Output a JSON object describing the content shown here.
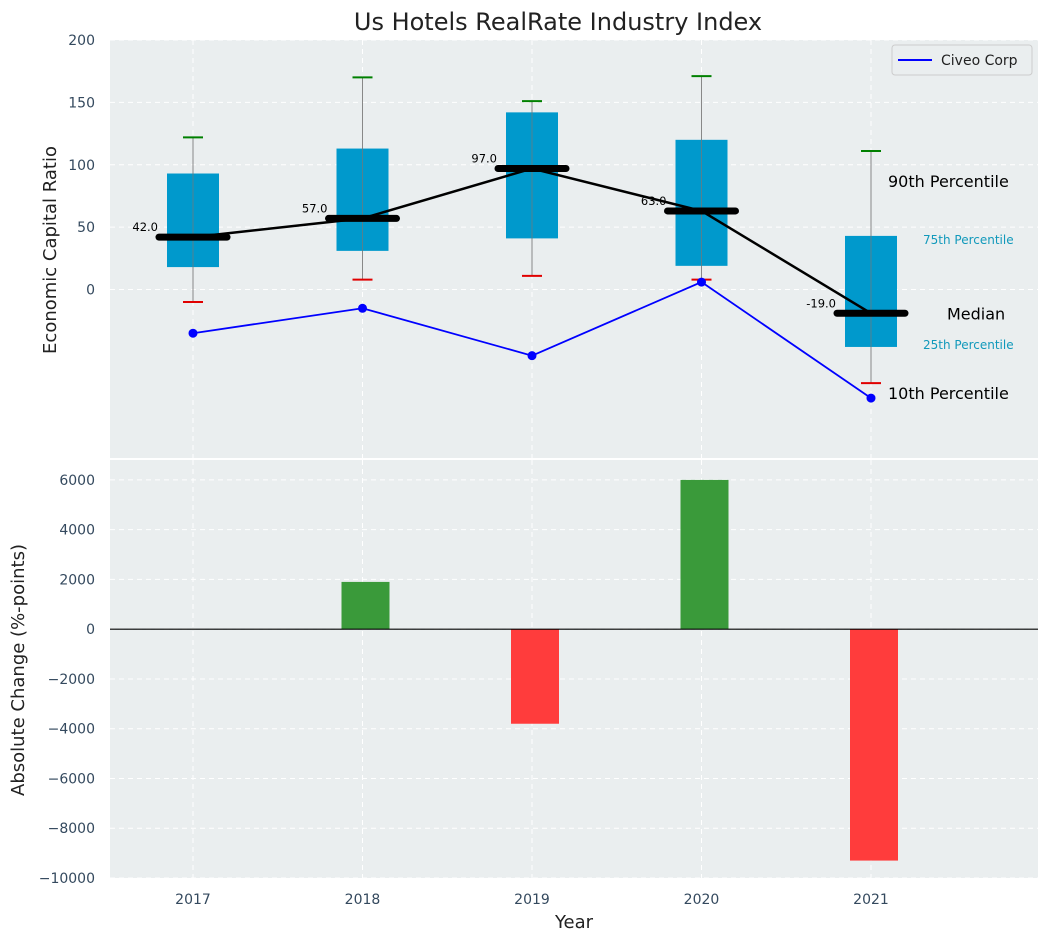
{
  "title": "Us Hotels RealRate Industry Index",
  "colors": {
    "panel_bg": "#eaeeef",
    "box": "#0099cc",
    "median": "#000000",
    "company": "#0000ff",
    "whisker_high": "#008000",
    "whisker_low": "#e00000",
    "bar_pos": "#3a9a3a",
    "bar_neg": "#ff3c3c",
    "label_25_75": "#1199bb",
    "tick_text": "#34495e"
  },
  "chart_data": [
    {
      "type": "box",
      "ylabel": "Economic Capital Ratio",
      "ylim": [
        -135,
        200
      ],
      "yticks": [
        0,
        50,
        100,
        150,
        200
      ],
      "categories": [
        "2017",
        "2018",
        "2019",
        "2020",
        "2021"
      ],
      "p10": [
        -10,
        8,
        11,
        8,
        -75
      ],
      "p25": [
        18,
        31,
        41,
        19,
        -46
      ],
      "median": [
        42,
        57,
        97,
        63,
        -19
      ],
      "p75": [
        93,
        113,
        142,
        120,
        43
      ],
      "p90": [
        122,
        170,
        151,
        171,
        111
      ],
      "median_labels": [
        "42.0",
        "57.0",
        "97.0",
        "63.0",
        "-19.0"
      ],
      "series": [
        {
          "name": "Civeo Corp",
          "values": [
            -35,
            -15,
            -53,
            6,
            -87
          ]
        }
      ],
      "legend": "top-right",
      "grid": true,
      "annotations": {
        "p90": "90th Percentile",
        "p75": "75th Percentile",
        "median": "Median",
        "p25": "25th Percentile",
        "p10": "10th Percentile"
      }
    },
    {
      "type": "bar",
      "xlabel": "Year",
      "ylabel": "Absolute Change (%-points)",
      "ylim": [
        -10000,
        6800
      ],
      "yticks": [
        -10000,
        -8000,
        -6000,
        -4000,
        -2000,
        0,
        2000,
        4000,
        6000
      ],
      "ytick_labels": [
        "−10000",
        "−8000",
        "−6000",
        "−4000",
        "−2000",
        "0",
        "2000",
        "4000",
        "6000"
      ],
      "categories": [
        "2017",
        "2018",
        "2019",
        "2020",
        "2021"
      ],
      "values": [
        0,
        1900,
        -3800,
        6000,
        -9300
      ],
      "grid": true
    }
  ]
}
